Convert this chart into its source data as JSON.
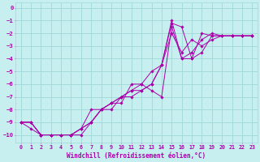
{
  "xlabel": "Windchill (Refroidissement éolien,°C)",
  "bg_color": "#c8efef",
  "grid_color": "#9fd8d8",
  "line_color": "#aa00aa",
  "xlim": [
    -0.5,
    23.5
  ],
  "ylim": [
    -10.6,
    0.4
  ],
  "xticks": [
    0,
    1,
    2,
    3,
    4,
    5,
    6,
    7,
    8,
    9,
    10,
    11,
    12,
    13,
    14,
    15,
    16,
    17,
    18,
    19,
    20,
    21,
    22,
    23
  ],
  "yticks": [
    0,
    -1,
    -2,
    -3,
    -4,
    -5,
    -6,
    -7,
    -8,
    -9,
    -10
  ],
  "curves": [
    [
      0,
      1,
      2,
      3,
      4,
      5,
      6,
      7,
      8,
      9,
      10,
      11,
      12,
      13,
      14,
      15,
      16,
      17,
      18,
      19,
      20,
      21,
      22,
      23
    ],
    [
      -9,
      -9,
      -10,
      -10,
      -10,
      -10,
      -9.5,
      -9,
      -8,
      -7.5,
      -7,
      -7,
      -6.5,
      -6,
      -4.5,
      -1.2,
      -1.5,
      -4,
      -3.5,
      -2.2,
      -2.2,
      -2.2,
      -2.2,
      -2.2
    ],
    [
      -9,
      -9,
      -10,
      -10,
      -10,
      -10,
      -10,
      -9,
      -8,
      -8,
      -7,
      -6.5,
      -6,
      -5,
      -4.5,
      -1.0,
      -4.0,
      -3.5,
      -2.5,
      -2.0,
      -2.2,
      -2.2,
      -2.2,
      -2.2
    ],
    [
      -9,
      -9.5,
      -10,
      -10,
      -10,
      -10,
      -9.5,
      -8,
      -8,
      -7.5,
      -7.5,
      -6,
      -6,
      -6.5,
      -7,
      -1.5,
      -4,
      -4,
      -2,
      -2.2,
      -2.2,
      -2.2,
      -2.2,
      -2.2
    ],
    [
      -9,
      -9,
      -10,
      -10,
      -10,
      -10,
      -9.5,
      -9,
      -8,
      -7.5,
      -7,
      -6.5,
      -6.5,
      -6,
      -4.5,
      -2,
      -3.5,
      -2.5,
      -3,
      -2.5,
      -2.2,
      -2.2,
      -2.2,
      -2.2
    ]
  ]
}
